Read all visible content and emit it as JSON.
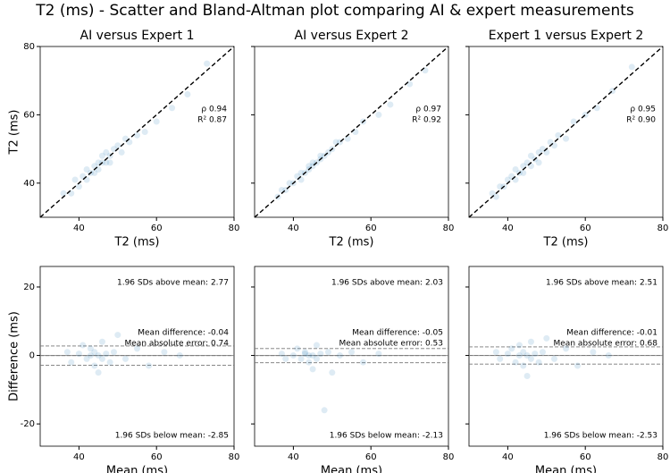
{
  "title": "T2 (ms) - Scatter and Bland-Altman plot comparing AI & expert measurements",
  "chart_data": [
    {
      "type": "scatter",
      "title": "AI versus Expert 1",
      "x_label": "T2 (ms)",
      "y_label": "T2 (ms)",
      "color": "#1f77b4",
      "xlim": [
        30,
        80
      ],
      "ylim": [
        30,
        80
      ],
      "xticks": [
        40,
        60,
        80
      ],
      "yticks": [
        40,
        60,
        80
      ],
      "show_ytick_labels": true,
      "annotations": [
        "ρ 0.94",
        "R² 0.87"
      ],
      "x": [
        36,
        38,
        39,
        40,
        41,
        42,
        42,
        43,
        44,
        44,
        45,
        45,
        46,
        46,
        47,
        47,
        48,
        48,
        49,
        50,
        51,
        52,
        53,
        55,
        57,
        60,
        64,
        68,
        73
      ],
      "y": [
        37,
        37,
        41,
        39,
        42,
        41,
        44,
        43,
        45,
        43,
        46,
        44,
        46,
        48,
        46,
        49,
        48,
        46,
        50,
        51,
        49,
        53,
        52,
        54,
        55,
        58,
        62,
        66,
        75
      ]
    },
    {
      "type": "scatter",
      "title": "AI versus Expert 2",
      "x_label": "T2 (ms)",
      "color": "#1f77b4",
      "xlim": [
        30,
        80
      ],
      "ylim": [
        30,
        80
      ],
      "xticks": [
        40,
        60,
        80
      ],
      "yticks": [
        40,
        60,
        80
      ],
      "show_ytick_labels": false,
      "annotations": [
        "ρ 0.97",
        "R² 0.92"
      ],
      "x": [
        36,
        37,
        38,
        39,
        40,
        41,
        42,
        42,
        43,
        44,
        44,
        45,
        45,
        46,
        47,
        47,
        48,
        49,
        50,
        51,
        52,
        54,
        56,
        58,
        62,
        65,
        70,
        74
      ],
      "y": [
        36,
        38,
        38,
        40,
        40,
        42,
        41,
        43,
        43,
        44,
        45,
        45,
        46,
        46,
        47,
        48,
        48,
        49,
        50,
        52,
        52,
        53,
        55,
        58,
        60,
        63,
        69,
        73
      ]
    },
    {
      "type": "scatter",
      "title": "Expert 1 versus Expert 2",
      "x_label": "T2 (ms)",
      "color": "#1f77b4",
      "xlim": [
        30,
        80
      ],
      "ylim": [
        30,
        80
      ],
      "xticks": [
        40,
        60,
        80
      ],
      "yticks": [
        40,
        60,
        80
      ],
      "show_ytick_labels": false,
      "annotations": [
        "ρ 0.95",
        "R² 0.90"
      ],
      "x": [
        36,
        37,
        38,
        39,
        40,
        41,
        42,
        42,
        43,
        44,
        44,
        45,
        46,
        46,
        47,
        48,
        48,
        49,
        50,
        51,
        52,
        53,
        55,
        57,
        60,
        63,
        67,
        72
      ],
      "y": [
        37,
        36,
        39,
        39,
        41,
        42,
        41,
        44,
        43,
        45,
        43,
        46,
        45,
        48,
        47,
        49,
        46,
        50,
        49,
        52,
        51,
        54,
        53,
        58,
        60,
        62,
        67,
        74
      ]
    },
    {
      "type": "bland-altman",
      "x_label": "Mean (ms)",
      "y_label": "Difference (ms)",
      "color": "#1f77b4",
      "xlim": [
        30,
        80
      ],
      "ylim": [
        -26.5,
        26
      ],
      "xticks": [
        40,
        60,
        80
      ],
      "yticks": [
        -20,
        0,
        20
      ],
      "show_ytick_labels": true,
      "upper_loa": {
        "value": 2.77,
        "label": "1.96 SDs above mean: 2.77"
      },
      "mean_difference": {
        "value": -0.04,
        "label": "Mean difference:  -0.04"
      },
      "mae_label": "Mean absolute error:  0.74",
      "lower_loa": {
        "value": -2.85,
        "label": "1.96 SDs below mean: -2.85"
      },
      "x": [
        37,
        38,
        40,
        41,
        42,
        43,
        43,
        44,
        44,
        45,
        45,
        46,
        46,
        47,
        48,
        49,
        50,
        52,
        55,
        58,
        62,
        66
      ],
      "y": [
        1,
        -2,
        0.5,
        3,
        -1,
        0,
        2,
        -3,
        1,
        0,
        -5,
        4,
        -1,
        0.5,
        -2,
        1,
        6,
        -1,
        2,
        -3,
        1,
        0
      ]
    },
    {
      "type": "bland-altman",
      "x_label": "Mean (ms)",
      "color": "#1f77b4",
      "xlim": [
        30,
        80
      ],
      "ylim": [
        -26.5,
        26
      ],
      "xticks": [
        40,
        60,
        80
      ],
      "yticks": [
        -20,
        0,
        20
      ],
      "show_ytick_labels": false,
      "upper_loa": {
        "value": 2.03,
        "label": "1.96 SDs above mean: 2.03"
      },
      "mean_difference": {
        "value": -0.05,
        "label": "Mean difference:  -0.05"
      },
      "mae_label": "Mean absolute error:  0.53",
      "lower_loa": {
        "value": -2.13,
        "label": "1.96 SDs below mean: -2.13"
      },
      "x": [
        37,
        38,
        40,
        41,
        42,
        43,
        43,
        44,
        44,
        45,
        45,
        46,
        46,
        47,
        48,
        49,
        50,
        52,
        55,
        58,
        62
      ],
      "y": [
        0.5,
        -1,
        0,
        2,
        -1,
        0.5,
        1,
        -2,
        0,
        0,
        -4,
        3,
        -1,
        0.5,
        -16,
        1,
        -5,
        0,
        1,
        -2,
        0.5
      ]
    },
    {
      "type": "bland-altman",
      "x_label": "Mean (ms)",
      "color": "#1f77b4",
      "xlim": [
        30,
        80
      ],
      "ylim": [
        -26.5,
        26
      ],
      "xticks": [
        40,
        60,
        80
      ],
      "yticks": [
        -20,
        0,
        20
      ],
      "show_ytick_labels": false,
      "upper_loa": {
        "value": 2.51,
        "label": "1.96 SDs above mean: 2.51"
      },
      "mean_difference": {
        "value": -0.01,
        "label": "Mean difference:  -0.01"
      },
      "mae_label": "Mean absolute error:  0.68",
      "lower_loa": {
        "value": -2.53,
        "label": "1.96 SDs below mean: -2.53"
      },
      "x": [
        37,
        38,
        40,
        41,
        42,
        43,
        43,
        44,
        44,
        45,
        45,
        46,
        46,
        47,
        48,
        49,
        50,
        52,
        55,
        58,
        62,
        66
      ],
      "y": [
        1,
        -1,
        0.5,
        2,
        -2,
        0,
        3,
        -3,
        1,
        0,
        -6,
        4,
        -1,
        0.5,
        -2,
        1,
        5,
        -1,
        2,
        -3,
        1,
        0
      ]
    }
  ]
}
